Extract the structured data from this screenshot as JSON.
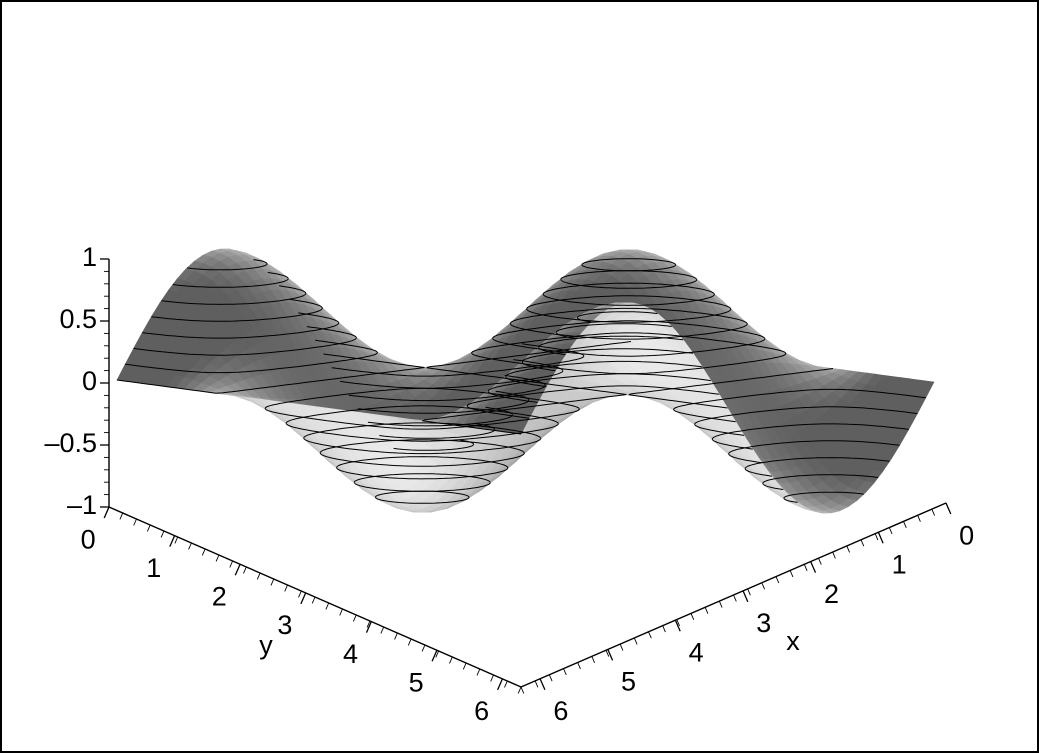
{
  "chart_data": {
    "type": "surface3d",
    "function_samples": {
      "x": [
        0,
        0.785,
        1.571,
        2.356,
        3.142,
        3.927,
        4.712,
        5.498,
        6.283
      ],
      "y": [
        0,
        0.785,
        1.571,
        2.356,
        3.142,
        3.927,
        4.712,
        5.498,
        6.283
      ],
      "z": [
        [
          0.0,
          0.71,
          1.0,
          0.71,
          0.0,
          -0.71,
          -1.0,
          -0.71,
          0.0
        ],
        [
          0.0,
          0.5,
          0.71,
          0.5,
          0.0,
          -0.5,
          -0.71,
          -0.5,
          0.0
        ],
        [
          0.0,
          0.0,
          0.0,
          0.0,
          0.0,
          0.0,
          0.0,
          0.0,
          0.0
        ],
        [
          0.0,
          -0.5,
          -0.71,
          -0.5,
          0.0,
          0.5,
          0.71,
          0.5,
          0.0
        ],
        [
          0.0,
          -0.71,
          -1.0,
          -0.71,
          0.0,
          0.71,
          1.0,
          0.71,
          0.0
        ],
        [
          0.0,
          -0.5,
          -0.71,
          -0.5,
          0.0,
          0.5,
          0.71,
          0.5,
          0.0
        ],
        [
          0.0,
          0.0,
          0.0,
          0.0,
          0.0,
          0.0,
          0.0,
          0.0,
          0.0
        ],
        [
          0.0,
          0.5,
          0.71,
          0.5,
          0.0,
          -0.5,
          -0.71,
          -0.5,
          0.0
        ],
        [
          0.0,
          0.71,
          1.0,
          0.71,
          0.0,
          -0.71,
          -1.0,
          -0.71,
          0.0
        ]
      ]
    },
    "xlabel": "x",
    "ylabel": "y",
    "zlabel": "",
    "xlim": [
      0,
      6.283
    ],
    "ylim": [
      0,
      6.283
    ],
    "zlim": [
      -1,
      1
    ],
    "x_ticks": [
      "0",
      "1",
      "2",
      "3",
      "4",
      "5",
      "6"
    ],
    "y_ticks": [
      "0",
      "1",
      "2",
      "3",
      "4",
      "5",
      "6"
    ],
    "z_ticks": [
      "1",
      "0.5",
      "0",
      "–0.5",
      "–1"
    ],
    "contour_levels": [
      -0.875,
      -0.75,
      -0.625,
      -0.5,
      -0.375,
      -0.25,
      -0.125,
      0,
      0.125,
      0.25,
      0.375,
      0.5,
      0.625,
      0.75,
      0.875
    ],
    "shading": "grayscale",
    "grid": false,
    "legend": "none"
  }
}
